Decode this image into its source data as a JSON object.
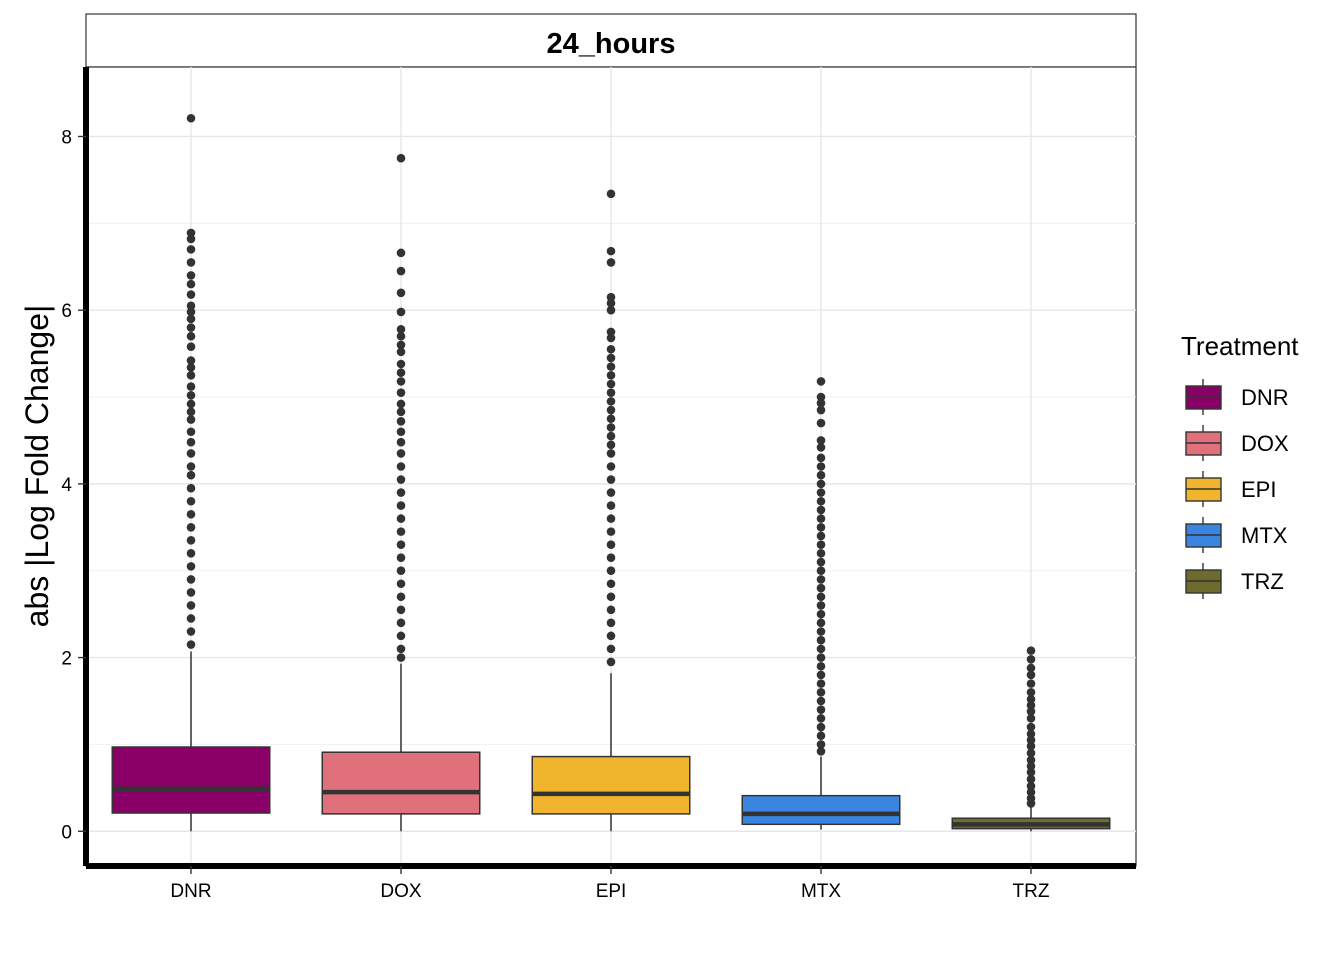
{
  "chart_data": {
    "type": "boxplot",
    "facet_title": "24_hours",
    "xlabel": "",
    "ylabel": "abs |Log Fold Change|",
    "ylim": [
      -0.4,
      8.8
    ],
    "y_ticks": [
      0,
      2,
      4,
      6,
      8
    ],
    "grid": true,
    "legend": {
      "title": "Treatment",
      "placement": "right"
    },
    "categories": [
      "DNR",
      "DOX",
      "EPI",
      "MTX",
      "TRZ"
    ],
    "colors": [
      "#8B0068",
      "#E0707B",
      "#F0B52C",
      "#3A85E0",
      "#6E6B2C"
    ],
    "boxes": [
      {
        "name": "DNR",
        "min": 0.0,
        "q1": 0.21,
        "median": 0.49,
        "q3": 0.97,
        "whisker_high": 2.07,
        "outliers": [
          8.21,
          6.89,
          6.82,
          6.7,
          6.55,
          6.4,
          6.3,
          6.18,
          6.05,
          5.98,
          5.9,
          5.8,
          5.7,
          5.58,
          5.42,
          5.34,
          5.25,
          5.12,
          5.02,
          4.92,
          4.83,
          4.74,
          4.6,
          4.48,
          4.35,
          4.2,
          4.1,
          3.95,
          3.8,
          3.65,
          3.5,
          3.35,
          3.2,
          3.05,
          2.9,
          2.75,
          2.6,
          2.45,
          2.3,
          2.15
        ]
      },
      {
        "name": "DOX",
        "min": 0.0,
        "q1": 0.2,
        "median": 0.45,
        "q3": 0.91,
        "whisker_high": 1.93,
        "outliers": [
          7.75,
          6.66,
          6.45,
          6.2,
          5.98,
          5.78,
          5.7,
          5.6,
          5.52,
          5.38,
          5.28,
          5.18,
          5.05,
          4.92,
          4.83,
          4.72,
          4.6,
          4.48,
          4.35,
          4.2,
          4.05,
          3.9,
          3.75,
          3.6,
          3.45,
          3.3,
          3.15,
          3.0,
          2.85,
          2.7,
          2.55,
          2.4,
          2.25,
          2.1,
          2.0
        ]
      },
      {
        "name": "EPI",
        "min": 0.0,
        "q1": 0.2,
        "median": 0.43,
        "q3": 0.86,
        "whisker_high": 1.82,
        "outliers": [
          7.34,
          6.68,
          6.55,
          6.15,
          6.08,
          6.0,
          5.75,
          5.68,
          5.55,
          5.45,
          5.35,
          5.25,
          5.15,
          5.05,
          4.95,
          4.85,
          4.75,
          4.65,
          4.55,
          4.45,
          4.35,
          4.2,
          4.05,
          3.9,
          3.75,
          3.6,
          3.45,
          3.3,
          3.15,
          3.0,
          2.85,
          2.7,
          2.55,
          2.4,
          2.25,
          2.1,
          1.95
        ]
      },
      {
        "name": "MTX",
        "min": 0.02,
        "q1": 0.08,
        "median": 0.2,
        "q3": 0.41,
        "whisker_high": 0.86,
        "outliers": [
          5.18,
          5.0,
          4.93,
          4.85,
          4.7,
          4.5,
          4.42,
          4.3,
          4.2,
          4.1,
          4.0,
          3.9,
          3.8,
          3.7,
          3.6,
          3.5,
          3.4,
          3.3,
          3.2,
          3.1,
          3.0,
          2.9,
          2.8,
          2.7,
          2.6,
          2.5,
          2.4,
          2.3,
          2.2,
          2.1,
          2.0,
          1.9,
          1.8,
          1.7,
          1.6,
          1.5,
          1.4,
          1.3,
          1.2,
          1.1,
          1.0,
          0.92
        ]
      },
      {
        "name": "TRZ",
        "min": 0.0,
        "q1": 0.03,
        "median": 0.08,
        "q3": 0.15,
        "whisker_high": 0.28,
        "outliers": [
          2.08,
          1.98,
          1.88,
          1.8,
          1.7,
          1.6,
          1.52,
          1.45,
          1.38,
          1.3,
          1.2,
          1.12,
          1.05,
          0.98,
          0.9,
          0.82,
          0.75,
          0.68,
          0.6,
          0.52,
          0.45,
          0.38,
          0.32
        ]
      }
    ]
  }
}
